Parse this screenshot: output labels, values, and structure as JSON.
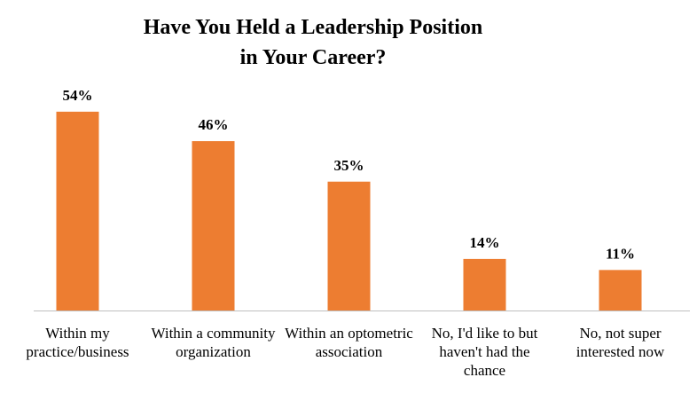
{
  "chart_data": {
    "type": "bar",
    "title": [
      "Have You Held a Leadership Position",
      "in Your Career?"
    ],
    "categories": [
      "Within my practice/business",
      "Within a community organization",
      "Within an optometric association",
      "No, I'd like to but haven't had the chance",
      "No, not super interested now"
    ],
    "values": [
      54,
      46,
      35,
      14,
      11
    ],
    "value_labels": [
      "54%",
      "46%",
      "35%",
      "14%",
      "11%"
    ],
    "color": "#ED7D31"
  }
}
